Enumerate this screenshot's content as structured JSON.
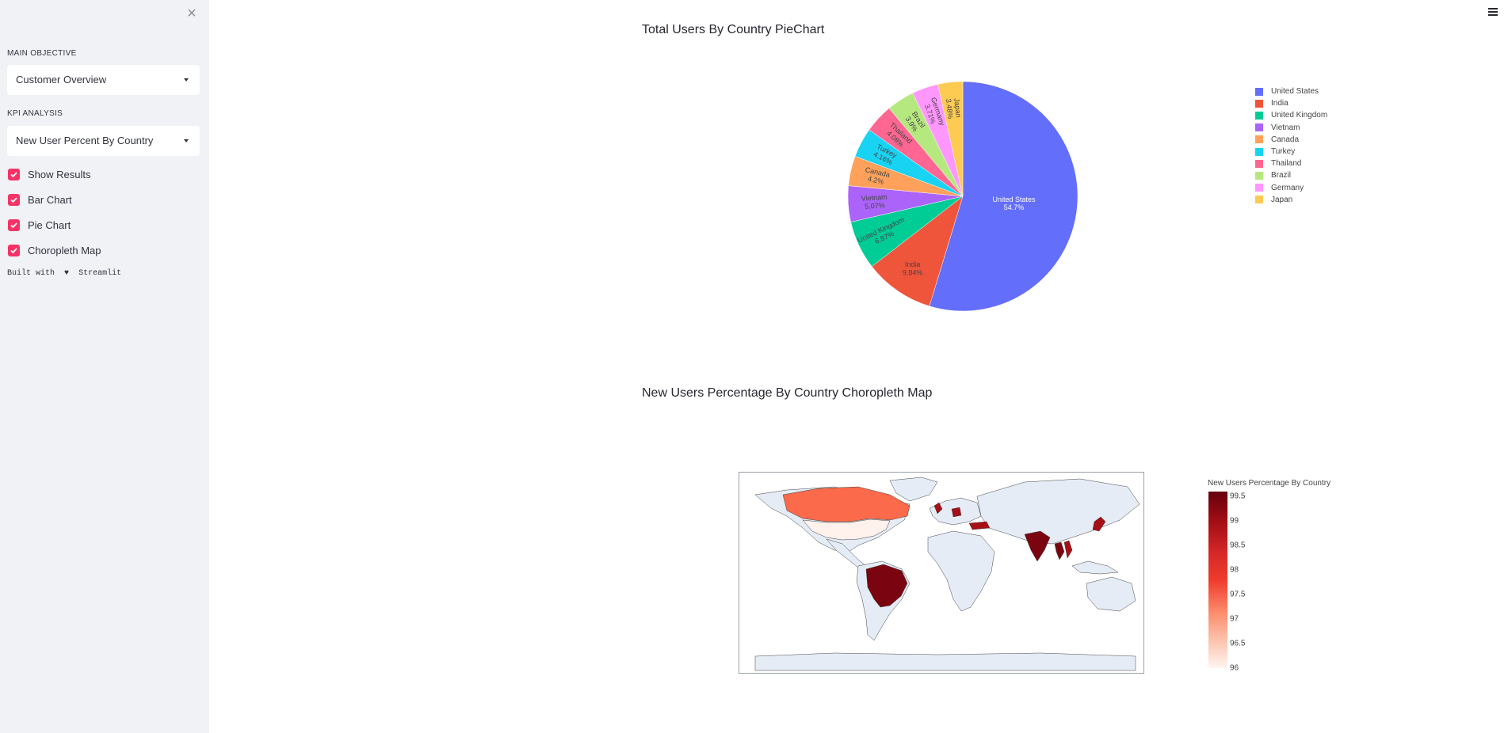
{
  "sidebar": {
    "close_icon": "close-icon",
    "main_objective_label": "MAIN OBJECTIVE",
    "main_objective_value": "Customer Overview",
    "kpi_label": "KPI ANALYSIS",
    "kpi_value": "New User Percent By Country",
    "checkboxes": [
      {
        "label": "Show Results",
        "checked": true
      },
      {
        "label": "Bar Chart",
        "checked": true
      },
      {
        "label": "Pie Chart",
        "checked": true
      },
      {
        "label": "Choropleth Map",
        "checked": true
      }
    ],
    "built_with_prefix": "Built with",
    "built_with_suffix": "Streamlit",
    "heart_icon": "heart-icon",
    "accent_color": "#f63366"
  },
  "header": {
    "menu_icon": "hamburger-menu-icon"
  },
  "chart_data": [
    {
      "type": "pie",
      "title": "Total Users By Country PieChart",
      "labels": [
        "United States",
        "India",
        "United Kingdom",
        "Vietnam",
        "Canada",
        "Turkey",
        "Thailand",
        "Brazil",
        "Germany",
        "Japan"
      ],
      "values": [
        54.7,
        9.84,
        6.87,
        5.07,
        4.2,
        4.16,
        4.08,
        3.9,
        3.71,
        3.48
      ],
      "value_labels": [
        "54.7%",
        "9.84%",
        "6.87%",
        "5.07%",
        "4.2%",
        "4.16%",
        "4.08%",
        "3.9%",
        "3.71%",
        "3.48%"
      ],
      "colors": [
        "#636efa",
        "#ef553b",
        "#00cc96",
        "#ab63fa",
        "#ffa15a",
        "#19d3f3",
        "#ff6692",
        "#b6e880",
        "#ff97ff",
        "#fecb52"
      ],
      "legend_position": "right"
    },
    {
      "type": "heatmap",
      "title": "New Users Percentage By Country Choropleth Map",
      "colorbar_title": "New Users Percentage By Country",
      "colorbar_ticks": [
        "99.5",
        "99",
        "98.5",
        "98",
        "97.5",
        "97",
        "96.5",
        "96"
      ],
      "colorbar_range": [
        96,
        99.6
      ],
      "colorscale": "Reds"
    }
  ]
}
